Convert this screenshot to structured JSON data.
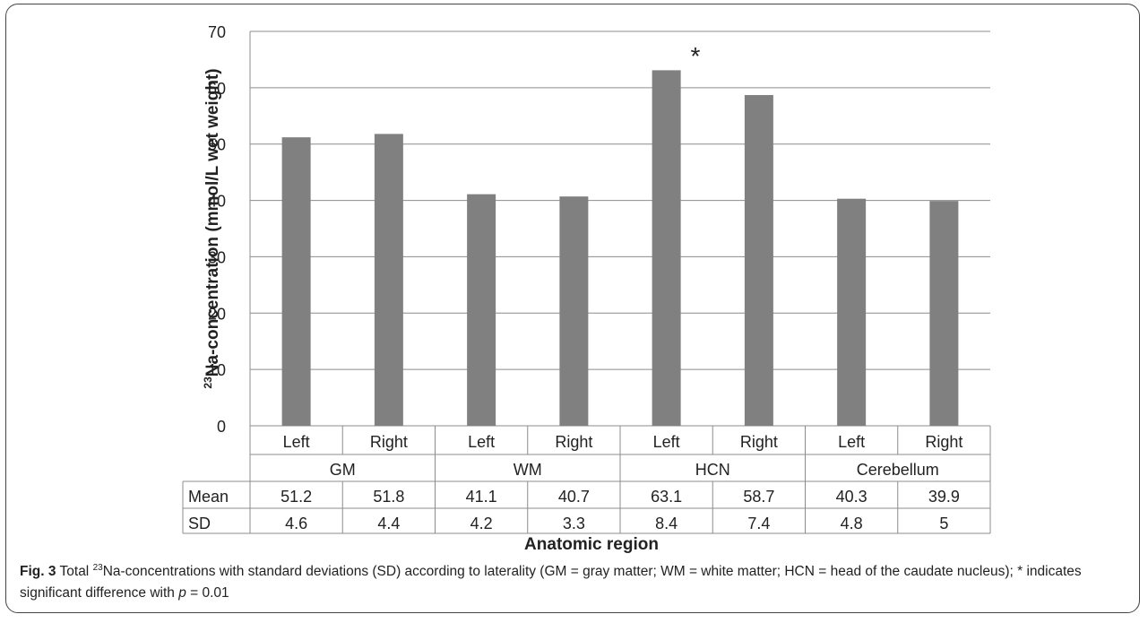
{
  "chart_data": {
    "type": "bar",
    "groups": [
      "GM",
      "WM",
      "HCN",
      "Cerebellum"
    ],
    "categories": [
      "Left",
      "Right",
      "Left",
      "Right",
      "Left",
      "Right",
      "Left",
      "Right"
    ],
    "values": [
      51.2,
      51.8,
      41.1,
      40.7,
      63.1,
      58.7,
      40.3,
      39.9
    ],
    "table": {
      "rows": [
        {
          "label": "Mean",
          "values": [
            "51.2",
            "51.8",
            "41.1",
            "40.7",
            "63.1",
            "58.7",
            "40.3",
            "39.9"
          ]
        },
        {
          "label": "SD",
          "values": [
            "4.6",
            "4.4",
            "4.2",
            "3.3",
            "8.4",
            "7.4",
            "4.8",
            "5"
          ]
        }
      ]
    },
    "ylabel_super": "23",
    "ylabel_main": "Na-concentration  (mmol/L wet weight)",
    "xlabel": "Anatomic region",
    "ylim": [
      0,
      70
    ],
    "yticks": [
      0,
      10,
      20,
      30,
      40,
      50,
      60,
      70
    ],
    "grid": true,
    "annotation": "*",
    "bar_color": "#808080"
  },
  "caption": {
    "fig_label": "Fig. 3",
    "text_before_sup": " Total ",
    "sup": "23",
    "text_mid": "Na-concentrations with standard deviations (SD) according to laterality (GM = gray matter; WM = white matter; HCN = head of the caudate nucleus); * indicates significant difference with ",
    "p_symbol": "p",
    "text_end": " = 0.01"
  }
}
